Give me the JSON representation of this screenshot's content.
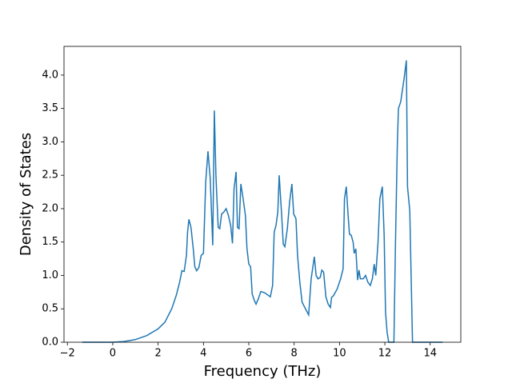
{
  "chart_data": {
    "type": "line",
    "x_label": "Frequency (THz)",
    "y_label": "Density of States",
    "xlim": [
      -2.15,
      15.35
    ],
    "ylim": [
      0,
      4.43
    ],
    "xticks": [
      {
        "value": -2,
        "label": "−2"
      },
      0,
      2,
      4,
      6,
      8,
      10,
      12,
      14
    ],
    "yticks": [
      {
        "value": 0,
        "label": "0.0"
      },
      {
        "value": 0.5,
        "label": "0.5"
      },
      {
        "value": 1,
        "label": "1.0"
      },
      {
        "value": 1.5,
        "label": "1.5"
      },
      {
        "value": 2,
        "label": "2.0"
      },
      {
        "value": 2.5,
        "label": "2.5"
      },
      {
        "value": 3,
        "label": "3.0"
      },
      {
        "value": 3.5,
        "label": "3.5"
      },
      {
        "value": 4,
        "label": "4.0"
      }
    ],
    "x": [
      -1.35,
      -1,
      -0.5,
      0,
      0.5,
      1,
      1.5,
      2,
      2.3,
      2.6,
      2.8,
      2.95,
      3.05,
      3.15,
      3.25,
      3.3,
      3.36,
      3.45,
      3.55,
      3.62,
      3.7,
      3.8,
      3.9,
      4.0,
      4.1,
      4.2,
      4.3,
      4.41,
      4.48,
      4.55,
      4.65,
      4.72,
      4.8,
      4.9,
      5.0,
      5.1,
      5.2,
      5.28,
      5.35,
      5.44,
      5.5,
      5.57,
      5.65,
      5.75,
      5.85,
      5.92,
      6.0,
      6.08,
      6.15,
      6.25,
      6.32,
      6.42,
      6.53,
      6.7,
      6.95,
      7.05,
      7.12,
      7.2,
      7.28,
      7.34,
      7.45,
      7.52,
      7.59,
      7.7,
      7.8,
      7.9,
      7.98,
      8.08,
      8.15,
      8.25,
      8.35,
      8.5,
      8.64,
      8.75,
      8.89,
      8.97,
      9.05,
      9.15,
      9.22,
      9.3,
      9.4,
      9.5,
      9.6,
      9.65,
      9.74,
      9.9,
      10.05,
      10.16,
      10.22,
      10.3,
      10.38,
      10.44,
      10.52,
      10.6,
      10.65,
      10.72,
      10.8,
      10.86,
      10.92,
      11.05,
      11.15,
      11.25,
      11.36,
      11.45,
      11.53,
      11.6,
      11.7,
      11.78,
      11.89,
      11.97,
      12.03,
      12.1,
      12.17,
      12.3,
      12.4,
      12.47,
      12.55,
      12.6,
      12.7,
      12.85,
      12.95,
      13.0,
      13.1,
      13.22,
      13.5,
      14,
      14.55
    ],
    "series": [
      {
        "color": "#1f77b4",
        "values": [
          0,
          0,
          0,
          0,
          0.01,
          0.04,
          0.1,
          0.2,
          0.3,
          0.5,
          0.7,
          0.9,
          1.07,
          1.06,
          1.3,
          1.65,
          1.84,
          1.72,
          1.4,
          1.13,
          1.07,
          1.12,
          1.3,
          1.33,
          2.4,
          2.86,
          2.45,
          1.45,
          3.47,
          2.5,
          1.72,
          1.7,
          1.92,
          1.95,
          2.0,
          1.9,
          1.75,
          1.48,
          2.3,
          2.55,
          1.72,
          1.7,
          2.37,
          2.15,
          1.9,
          1.4,
          1.17,
          1.13,
          0.72,
          0.62,
          0.57,
          0.65,
          0.76,
          0.74,
          0.68,
          0.85,
          1.65,
          1.75,
          1.95,
          2.5,
          1.9,
          1.47,
          1.43,
          1.7,
          2.1,
          2.37,
          1.92,
          1.85,
          1.3,
          0.9,
          0.6,
          0.5,
          0.41,
          0.95,
          1.28,
          1.0,
          0.95,
          0.97,
          1.08,
          1.05,
          0.68,
          0.57,
          0.52,
          0.67,
          0.7,
          0.8,
          0.95,
          1.1,
          2.15,
          2.33,
          1.9,
          1.62,
          1.6,
          1.5,
          1.33,
          1.4,
          0.93,
          1.08,
          0.95,
          0.95,
          1.0,
          0.9,
          0.85,
          0.95,
          1.17,
          1.0,
          1.5,
          2.15,
          2.33,
          1.6,
          0.45,
          0.15,
          0,
          0,
          0,
          1.5,
          2.95,
          3.5,
          3.6,
          3.95,
          4.22,
          2.33,
          1.97,
          0,
          0,
          0,
          0
        ]
      }
    ]
  }
}
